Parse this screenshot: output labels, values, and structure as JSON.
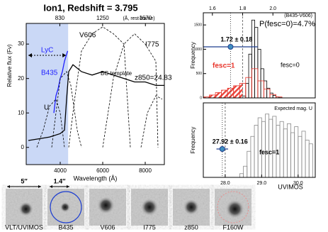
{
  "chart_data": [
    {
      "type": "line",
      "title": "Ion1, Redshift = 3.795",
      "xlabel": "Wavelength (Å)",
      "ylabel": "Relative flux (Fν)",
      "x2label": "(Å, rest-frame)",
      "xlim": [
        2400,
        8900
      ],
      "xticks": [
        4000,
        6000,
        8000
      ],
      "x2lim": [
        500,
        1856
      ],
      "x2ticks": [
        830,
        1250,
        1670
      ],
      "ylim": [
        -5,
        36
      ],
      "yticks": [
        0,
        10,
        20,
        30
      ],
      "shaded_range": [
        2400,
        4373
      ],
      "shaded_label": "LyC",
      "shaded_color": "#cad8f6",
      "series": [
        {
          "name": "BC template",
          "color": "#000000",
          "style": "solid",
          "x": [
            2500,
            3000,
            3500,
            4000,
            4200,
            4300,
            4400,
            4600,
            5000,
            5500,
            6000,
            6500,
            7000,
            7500,
            8000,
            8500,
            8900
          ],
          "values": [
            2,
            2.5,
            3,
            4,
            5,
            14,
            22,
            24,
            22,
            21,
            22,
            21,
            20,
            19,
            19,
            18,
            18
          ]
        },
        {
          "name": "B435",
          "color": "#1f1fff",
          "style": "solid",
          "x": [
            3700,
            3800,
            3900,
            4000,
            4100,
            4200,
            4300,
            4350
          ],
          "values": [
            10,
            15,
            17,
            20,
            22,
            25,
            27,
            28
          ]
        },
        {
          "name": "U",
          "color": "#000000",
          "style": "dashed",
          "x": [
            2900,
            3200,
            3500,
            3800,
            4000,
            4200
          ],
          "values": [
            0,
            5,
            12,
            14,
            10,
            0
          ]
        },
        {
          "color": "#000000",
          "style": "dashed",
          "x": [
            3600,
            3800,
            4000,
            4300,
            4500,
            4800,
            5000
          ],
          "values": [
            0,
            10,
            20,
            22,
            18,
            5,
            0
          ]
        },
        {
          "name": "V606",
          "color": "#000000",
          "style": "dashed",
          "x": [
            4400,
            4700,
            5000,
            5500,
            6000,
            6500,
            7000,
            7200,
            7300
          ],
          "values": [
            0,
            15,
            28,
            33,
            35,
            33,
            30,
            10,
            0
          ]
        },
        {
          "name": "I775",
          "color": "#000000",
          "style": "dashed",
          "x": [
            6000,
            6500,
            7000,
            7500,
            8000,
            8500,
            8600
          ],
          "values": [
            0,
            20,
            30,
            33,
            30,
            25,
            0
          ]
        },
        {
          "name": "z850=24.83",
          "color": "#000000",
          "style": "dashed",
          "x": [
            7800,
            8100,
            8500,
            8800
          ],
          "values": [
            0,
            10,
            15,
            14
          ]
        }
      ]
    },
    {
      "type": "histogram",
      "annotation": "P(fesc=0)=4.7%",
      "xlabel": "(B435-V606)",
      "ylabel": "Frequency",
      "xlim": [
        1.54,
        2.28
      ],
      "xticks": [
        1.6,
        1.8,
        {
          "value": 2,
          "label": "2.0"
        }
      ],
      "ylim": [
        0,
        1750
      ],
      "yticks": [
        0,
        500,
        1000,
        1500
      ],
      "hatch_limit": 1.8,
      "series": [
        {
          "name": "fesc=0",
          "color": "#000000",
          "bins": [
            1.8,
            1.82,
            1.84,
            1.86,
            1.88,
            1.9,
            1.92,
            1.94,
            1.96,
            1.98,
            2.0,
            2.02,
            2.04,
            2.06
          ],
          "values": [
            40,
            300,
            900,
            1600,
            1450,
            1000,
            600,
            350,
            200,
            100,
            50,
            20,
            5
          ]
        },
        {
          "name": "fesc=1",
          "color": "#e8342a",
          "bins": [
            1.54,
            1.58,
            1.62,
            1.66,
            1.7,
            1.74,
            1.78,
            1.82,
            1.86,
            1.9,
            1.94,
            1.98,
            2.02,
            2.06
          ],
          "values": [
            20,
            60,
            110,
            160,
            200,
            250,
            300,
            420,
            600,
            350,
            180,
            70,
            20
          ]
        }
      ],
      "point": {
        "value": 1.72,
        "error": 0.18,
        "label": "1.72 ± 0.18",
        "color": "#3f8fc0"
      }
    },
    {
      "type": "histogram",
      "title": "Expected mag. U",
      "xlabel": "UVIMOS",
      "ylabel": "Frequency",
      "xlim": [
        27.4,
        30.47
      ],
      "xticks": [
        {
          "value": 28,
          "label": "28.0"
        },
        {
          "value": 29,
          "label": "29.0"
        },
        {
          "value": 30,
          "label": "30.0"
        }
      ],
      "ylim": [
        0,
        100
      ],
      "vline": 28,
      "series": [
        {
          "name": "fesc=1",
          "color": "#888888",
          "bins": [
            28.4,
            28.5,
            28.6,
            28.7,
            28.8,
            28.9,
            29.0,
            29.1,
            29.2,
            29.3,
            29.4,
            29.5,
            29.6,
            29.7,
            29.8,
            29.9,
            30.0,
            30.1,
            30.2,
            30.3,
            30.4
          ],
          "values": [
            5,
            15,
            35,
            55,
            70,
            80,
            75,
            85,
            78,
            82,
            70,
            75,
            65,
            72,
            60,
            68,
            55,
            62,
            50,
            45
          ]
        }
      ],
      "point": {
        "value": 27.92,
        "error": 0.16,
        "label": "27.92 ± 0.16",
        "color": "#3f8fc0"
      }
    }
  ],
  "cutouts": {
    "labels": [
      "VLT/UVIMOS",
      "B435",
      "V606",
      "I775",
      "z850",
      "F160W"
    ],
    "scale_labels": [
      "5″",
      "1.4″"
    ]
  }
}
